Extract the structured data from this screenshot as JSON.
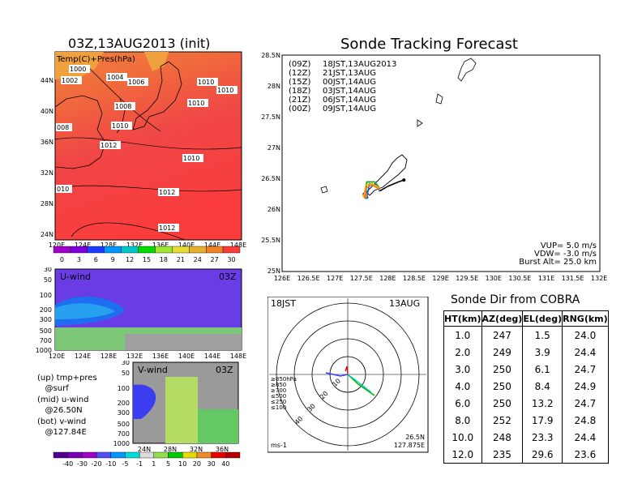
{
  "panels": {
    "top_left_title": "03Z,13AUG2013 (init)",
    "top_left_label": "Temp(C)+Pres(hPa)",
    "map_lon_ticks": [
      "120E",
      "124E",
      "128E",
      "132E",
      "136E",
      "140E",
      "144E",
      "148E"
    ],
    "map_lat_ticks": [
      "44N",
      "40N",
      "36N",
      "32N",
      "28N",
      "24N"
    ],
    "isobar_labels": [
      "1000",
      "1002",
      "1004",
      "1006",
      "1008",
      "1010",
      "1010",
      "1010",
      "1012",
      "1010",
      "1012",
      "1012",
      "1010",
      "008",
      "010"
    ],
    "temp_colorbar": [
      "0",
      "3",
      "6",
      "9",
      "12",
      "15",
      "18",
      "21",
      "24",
      "27",
      "30"
    ],
    "temp_colors": [
      "#a000c8",
      "#7d00dc",
      "#1e3cff",
      "#0096ff",
      "#00c8c8",
      "#00dc00",
      "#a0e632",
      "#e6dc32",
      "#e6af2d",
      "#f08228",
      "#fa3c3c"
    ],
    "u_label": "U-wind",
    "u_time": "03Z",
    "u_pres_ticks": [
      "30",
      "50",
      "100",
      "200",
      "300",
      "500",
      "700",
      "1000"
    ],
    "u_lon_ticks": [
      "120E",
      "124E",
      "128E",
      "132E",
      "136E",
      "140E",
      "144E",
      "148E"
    ],
    "v_label": "V-wind",
    "v_time": "03Z",
    "v_pres_ticks": [
      "30",
      "50",
      "100",
      "200",
      "300",
      "500",
      "700",
      "1000"
    ],
    "v_lat_ticks": [
      "24N",
      "28N",
      "32N",
      "36N"
    ],
    "wind_colorbar": [
      "-40",
      "-30",
      "-20",
      "-10",
      "-5",
      "-1",
      "1",
      "5",
      "10",
      "20",
      "30",
      "40"
    ],
    "notes": [
      {
        "a": "(up) tmp+pres",
        "b": "@surf"
      },
      {
        "a": "(mid) u-wind",
        "b": "@26.50N"
      },
      {
        "a": "(bot) v-wind",
        "b": "@127.84E"
      }
    ]
  },
  "tracking": {
    "title": "Sonde Tracking Forecast",
    "lat_ticks": [
      "28.5N",
      "28N",
      "27.5N",
      "27N",
      "26.5N",
      "26N",
      "25.5N",
      "25N"
    ],
    "lon_ticks": [
      "126E",
      "126.5E",
      "127E",
      "127.5E",
      "128E",
      "128.5E",
      "129E",
      "129.5E",
      "130E",
      "130.5E",
      "131E",
      "131.5E",
      "132E"
    ],
    "legend": [
      {
        "code": "(09Z)",
        "time": "18JST,13AUG2013",
        "color": "#000000"
      },
      {
        "code": "(12Z)",
        "time": "21JST,13AUG",
        "color": "#a020c8"
      },
      {
        "code": "(15Z)",
        "time": "00JST,14AUG",
        "color": "#2850e6"
      },
      {
        "code": "(18Z)",
        "time": "03JST,14AUG",
        "color": "#14b414"
      },
      {
        "code": "(21Z)",
        "time": "06JST,14AUG",
        "color": "#f0b400"
      },
      {
        "code": "(00Z)",
        "time": "09JST,14AUG",
        "color": "#f07828"
      }
    ],
    "params": [
      "VUP= 5.0 m/s",
      "VDW= -3.0 m/s",
      "Burst Alt= 25.0 km"
    ]
  },
  "polar": {
    "time_label": "18JST",
    "date_label": "13AUG",
    "ring_labels": [
      "10",
      "20",
      "30",
      "40"
    ],
    "level_legend": [
      {
        "text": "≥850hPa",
        "color": "#e60000"
      },
      {
        "text": "≥850",
        "color": "#f0a000"
      },
      {
        "text": "≥700",
        "color": "#c8c800"
      },
      {
        "text": "≤500",
        "color": "#00b400"
      },
      {
        "text": "≤250",
        "color": "#00c8c8"
      },
      {
        "text": "≤100",
        "color": "#3c3cff"
      }
    ],
    "units": "ms-1",
    "pos_lat": "26.5N",
    "pos_lon": "127.875E"
  },
  "direction": {
    "title": "Sonde Dir from COBRA",
    "headers": [
      "HT(km)",
      "AZ(deg)",
      "EL(deg)",
      "RNG(km)"
    ],
    "rows": [
      [
        "1.0",
        "247",
        "1.5",
        "24.0"
      ],
      [
        "2.0",
        "249",
        "3.9",
        "24.4"
      ],
      [
        "3.0",
        "250",
        "6.1",
        "24.7"
      ],
      [
        "4.0",
        "250",
        "8.4",
        "24.9"
      ],
      [
        "6.0",
        "250",
        "13.2",
        "24.7"
      ],
      [
        "8.0",
        "252",
        "17.9",
        "24.8"
      ],
      [
        "10.0",
        "248",
        "23.3",
        "24.4"
      ],
      [
        "12.0",
        "235",
        "29.6",
        "23.6"
      ]
    ]
  },
  "chart_data": [
    {
      "type": "table",
      "title": "Sonde Dir from COBRA",
      "columns": [
        "HT(km)",
        "AZ(deg)",
        "EL(deg)",
        "RNG(km)"
      ],
      "rows": [
        [
          1.0,
          247,
          1.5,
          24.0
        ],
        [
          2.0,
          249,
          3.9,
          24.4
        ],
        [
          3.0,
          250,
          6.1,
          24.7
        ],
        [
          4.0,
          250,
          8.4,
          24.9
        ],
        [
          6.0,
          250,
          13.2,
          24.7
        ],
        [
          8.0,
          252,
          17.9,
          24.8
        ],
        [
          10.0,
          248,
          23.3,
          24.4
        ],
        [
          12.0,
          235,
          29.6,
          23.6
        ]
      ]
    },
    {
      "type": "line",
      "title": "Sonde Tracking Forecast",
      "xlim": [
        126,
        132
      ],
      "ylim": [
        25,
        28.5
      ],
      "series": [
        {
          "name": "(09Z) 18JST,13AUG2013",
          "x": [
            127.84,
            128.0,
            128.2,
            128.3
          ],
          "y": [
            26.3,
            26.38,
            26.45,
            26.48
          ]
        },
        {
          "name": "(12Z) 21JST,13AUG",
          "x": [
            127.84,
            127.75,
            127.6,
            127.55
          ],
          "y": [
            26.35,
            26.45,
            26.45,
            26.25
          ]
        },
        {
          "name": "(15Z) 00JST,14AUG",
          "x": [
            127.84,
            127.8,
            127.65,
            127.6
          ],
          "y": [
            26.3,
            26.4,
            26.42,
            26.2
          ]
        },
        {
          "name": "(18Z) 03JST,14AUG",
          "x": [
            127.84,
            127.75,
            127.6,
            127.58
          ],
          "y": [
            26.35,
            26.45,
            26.45,
            26.2
          ]
        },
        {
          "name": "(21Z) 06JST,14AUG",
          "x": [
            127.84,
            127.7,
            127.58,
            127.55
          ],
          "y": [
            26.35,
            26.42,
            26.4,
            26.22
          ]
        },
        {
          "name": "(00Z) 09JST,14AUG",
          "x": [
            127.84,
            127.7,
            127.58,
            127.58
          ],
          "y": [
            26.33,
            26.4,
            26.35,
            26.22
          ]
        }
      ]
    }
  ]
}
